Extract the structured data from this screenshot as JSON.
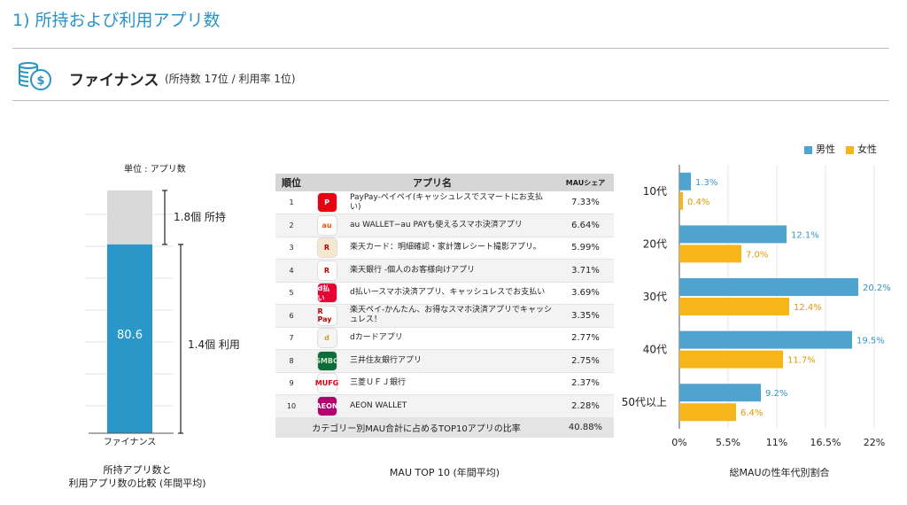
{
  "page": {
    "title": "1) 所持および利用アプリ数",
    "section_title": "ファイナンス",
    "section_sub": "(所持数 17位 / 利用率 1位)"
  },
  "colors": {
    "accent": "#2a93c6",
    "male": "#4fa3cf",
    "female": "#f6b619",
    "owned_gray": "#d9d9d9",
    "used_blue": "#2a97c9"
  },
  "icons": {
    "header": "coin-stack-icon"
  },
  "chart_data": [
    {
      "type": "bar",
      "stacked": true,
      "unit_label": "単位 : アプリ数",
      "categories": [
        "ファイナンス"
      ],
      "owned_value": 1.8,
      "used_value": 1.4,
      "owned_annotation": "1.8個 所持",
      "used_annotation": "1.4個 利用",
      "bar_label": "80.6",
      "caption_line1": "所持アプリ数と",
      "caption_line2": "利用アプリ数の比較 (年間平均)"
    },
    {
      "type": "table",
      "headers": [
        "順位",
        "アプリ名",
        "MAUシェア"
      ],
      "rows": [
        {
          "rank": "1",
          "name": "PayPay-ペイペイ(キャッシュレスでスマートにお支払い)",
          "share": "7.33%",
          "icon": "paypay-icon",
          "icon_text": "P"
        },
        {
          "rank": "2",
          "name": "au WALLET−au PAYも使えるスマホ決済アプリ",
          "share": "6.64%",
          "icon": "au-wallet-icon",
          "icon_text": "au"
        },
        {
          "rank": "3",
          "name": "楽天カード：明細確認・家計簿レシート撮影アプリ。",
          "share": "5.99%",
          "icon": "rakuten-card-icon",
          "icon_text": "R"
        },
        {
          "rank": "4",
          "name": "楽天銀行 -個人のお客様向けアプリ",
          "share": "3.71%",
          "icon": "rakuten-bank-icon",
          "icon_text": "R"
        },
        {
          "rank": "5",
          "name": "d払いースマホ決済アプリ、キャッシュレスでお支払い",
          "share": "3.69%",
          "icon": "d-barai-icon",
          "icon_text": "d払い"
        },
        {
          "rank": "6",
          "name": "楽天ペイ-かんたん、お得なスマホ決済アプリでキャッシュレス！",
          "share": "3.35%",
          "icon": "rakuten-pay-icon",
          "icon_text": "R Pay"
        },
        {
          "rank": "7",
          "name": "dカードアプリ",
          "share": "2.77%",
          "icon": "d-card-icon",
          "icon_text": "d"
        },
        {
          "rank": "8",
          "name": "三井住友銀行アプリ",
          "share": "2.75%",
          "icon": "smbc-icon",
          "icon_text": "SMBC"
        },
        {
          "rank": "9",
          "name": "三菱ＵＦＪ銀行",
          "share": "2.37%",
          "icon": "mufg-icon",
          "icon_text": "MUFG"
        },
        {
          "rank": "10",
          "name": "AEON WALLET",
          "share": "2.28%",
          "icon": "aeon-wallet-icon",
          "icon_text": "AEON"
        }
      ],
      "total_label": "カテゴリー別MAU合計に占めるTOP10アプリの比率",
      "total_value": "40.88%",
      "caption": "MAU TOP 10 (年間平均)"
    },
    {
      "type": "bar",
      "orientation": "horizontal",
      "categories": [
        "10代",
        "20代",
        "30代",
        "40代",
        "50代以上"
      ],
      "series": [
        {
          "name": "男性",
          "values": [
            1.3,
            12.1,
            20.2,
            19.5,
            9.2
          ],
          "labels": [
            "1.3%",
            "12.1%",
            "20.2%",
            "19.5%",
            "9.2%"
          ]
        },
        {
          "name": "女性",
          "values": [
            0.4,
            7.0,
            12.4,
            11.7,
            6.4
          ],
          "labels": [
            "0.4%",
            "7.0%",
            "12.4%",
            "11.7%",
            "6.4%"
          ]
        }
      ],
      "xlim": [
        0,
        22
      ],
      "xticks": [
        "0%",
        "5.5%",
        "11%",
        "16.5%",
        "22%"
      ],
      "legend_position": "top-right",
      "caption": "総MAUの性年代別割合"
    }
  ]
}
